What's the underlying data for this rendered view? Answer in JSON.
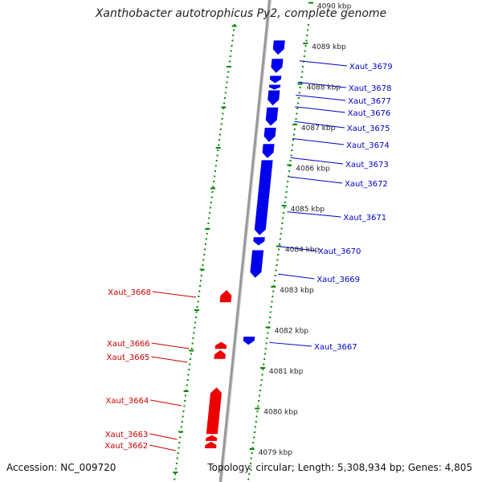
{
  "title": "Xanthobacter autotrophicus Py2, complete genome",
  "footer": {
    "accession": "Accession: NC_009720",
    "topology": "Topology: circular; Length: 5,308,934 bp; Genes: 4,805"
  },
  "ruler": {
    "ticks": [
      {
        "kbp": 4090,
        "label": "4090 kbp"
      },
      {
        "kbp": 4089,
        "label": "4089 kbp"
      },
      {
        "kbp": 4088,
        "label": "4088 kbp"
      },
      {
        "kbp": 4087,
        "label": "4087 kbp"
      },
      {
        "kbp": 4086,
        "label": "4086 kbp"
      },
      {
        "kbp": 4085,
        "label": "4085 kbp"
      },
      {
        "kbp": 4084,
        "label": "4084 kbp"
      },
      {
        "kbp": 4083,
        "label": "4083 kbp"
      },
      {
        "kbp": 4082,
        "label": "4082 kbp"
      },
      {
        "kbp": 4081,
        "label": "4081 kbp"
      },
      {
        "kbp": 4080,
        "label": "4080 kbp"
      },
      {
        "kbp": 4079,
        "label": "4079 kbp"
      }
    ]
  },
  "genes": {
    "forward": [
      {
        "name": "Xaut_3679",
        "start": 4088.8,
        "end": 4089.15
      },
      {
        "name": "Xaut_3678",
        "start": 4088.35,
        "end": 4088.7
      },
      {
        "name": "Xaut_3677",
        "start": 4088.1,
        "end": 4088.28
      },
      {
        "name": "Xaut_3676",
        "start": 4087.95,
        "end": 4088.06
      },
      {
        "name": "Xaut_3675",
        "start": 4087.55,
        "end": 4087.92
      },
      {
        "name": "Xaut_3674",
        "start": 4087.05,
        "end": 4087.5
      },
      {
        "name": "Xaut_3673",
        "start": 4086.65,
        "end": 4087.0
      },
      {
        "name": "Xaut_3672",
        "start": 4086.25,
        "end": 4086.6
      },
      {
        "name": "Xaut_3671",
        "start": 4084.35,
        "end": 4086.2
      },
      {
        "name": "Xaut_3670",
        "start": 4084.1,
        "end": 4084.3
      },
      {
        "name": "Xaut_3669",
        "start": 4083.3,
        "end": 4083.98
      },
      {
        "name": "Xaut_3667",
        "start": 4081.65,
        "end": 4081.85
      }
    ],
    "reverse": [
      {
        "name": "Xaut_3668",
        "start": 4082.7,
        "end": 4083.0
      },
      {
        "name": "Xaut_3666",
        "start": 4081.55,
        "end": 4081.72
      },
      {
        "name": "Xaut_3665",
        "start": 4081.3,
        "end": 4081.52
      },
      {
        "name": "Xaut_3664",
        "start": 4079.45,
        "end": 4080.6
      },
      {
        "name": "Xaut_3663",
        "start": 4079.28,
        "end": 4079.42
      },
      {
        "name": "Xaut_3662",
        "start": 4079.1,
        "end": 4079.26
      }
    ]
  },
  "colors": {
    "forward": "#0000ee",
    "reverse": "#ee0000",
    "backbone": "#999999",
    "ruler": "#008800",
    "forward_label": "#0000cc",
    "reverse_label": "#cc0000"
  }
}
